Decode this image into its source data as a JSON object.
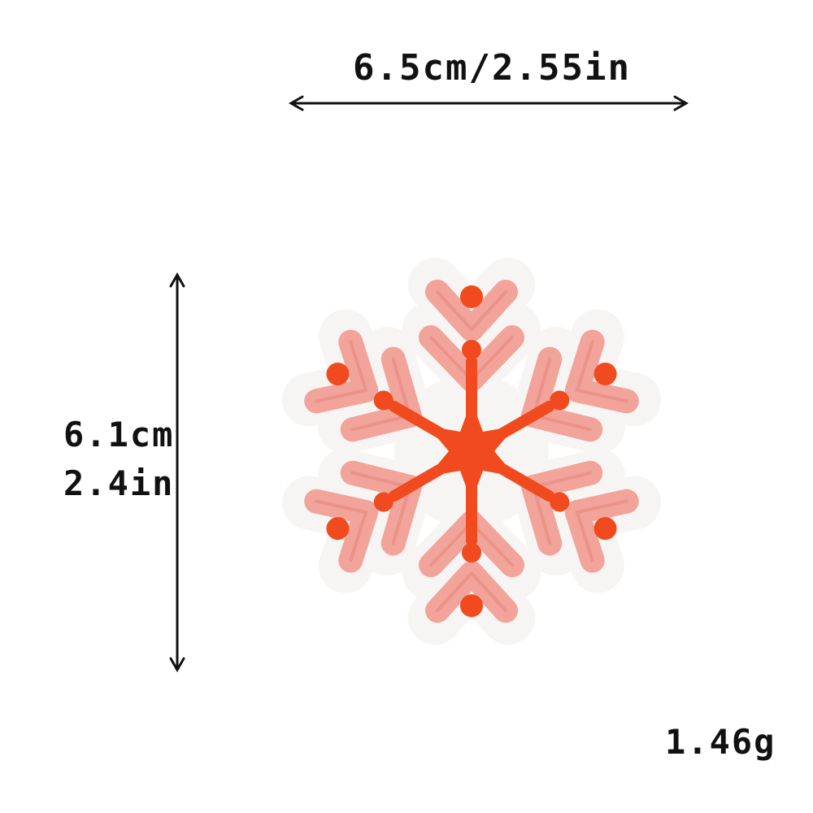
{
  "dimensions": {
    "width_text": "6.5cm/2.55in",
    "height_cm_text": "6.1cm",
    "height_in_text": "2.4in",
    "weight_text": "1.46g"
  },
  "product": {
    "subject_icon": "snowflake-patch-icon"
  },
  "colors": {
    "pink": "#f2a39a",
    "pink_dark": "#e8897f",
    "red_orange": "#f04a1e",
    "felt": "#f7f5f3",
    "text": "#111111"
  }
}
